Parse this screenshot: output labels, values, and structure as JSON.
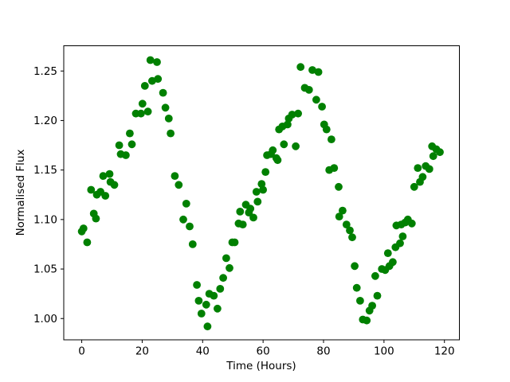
{
  "figure": {
    "background": "#ffffff",
    "axis_color": "#000000",
    "tick_label_color": "#000000"
  },
  "chart_data": {
    "type": "scatter",
    "title": "",
    "xlabel": "Time (Hours)",
    "ylabel": "Normalised Flux",
    "xlim": [
      -5.95,
      124.95
    ],
    "ylim": [
      0.9785,
      1.2755
    ],
    "x_ticks": [
      0,
      20,
      40,
      60,
      80,
      100,
      120
    ],
    "x_tick_labels": [
      "0",
      "20",
      "40",
      "60",
      "80",
      "100",
      "120"
    ],
    "y_ticks": [
      1.0,
      1.05,
      1.1,
      1.15,
      1.2,
      1.25
    ],
    "y_tick_labels": [
      "1.00",
      "1.05",
      "1.10",
      "1.15",
      "1.20",
      "1.25"
    ],
    "grid": false,
    "legend_position": "none",
    "series": [
      {
        "name": "normalised-flux-points",
        "color": "#008000",
        "marker": "circle",
        "marker_radius": 4.9,
        "points": [
          [
            0.0,
            1.088
          ],
          [
            0.6,
            1.091
          ],
          [
            1.8,
            1.077
          ],
          [
            3.1,
            1.13
          ],
          [
            4.0,
            1.106
          ],
          [
            4.7,
            1.101
          ],
          [
            5.0,
            1.125
          ],
          [
            6.2,
            1.128
          ],
          [
            7.1,
            1.144
          ],
          [
            7.8,
            1.124
          ],
          [
            9.2,
            1.146
          ],
          [
            9.5,
            1.138
          ],
          [
            10.8,
            1.135
          ],
          [
            12.4,
            1.175
          ],
          [
            12.9,
            1.166
          ],
          [
            14.6,
            1.165
          ],
          [
            15.9,
            1.187
          ],
          [
            16.6,
            1.176
          ],
          [
            17.9,
            1.207
          ],
          [
            19.6,
            1.207
          ],
          [
            20.1,
            1.217
          ],
          [
            20.9,
            1.235
          ],
          [
            21.9,
            1.209
          ],
          [
            22.7,
            1.261
          ],
          [
            23.3,
            1.24
          ],
          [
            24.9,
            1.259
          ],
          [
            25.2,
            1.242
          ],
          [
            26.9,
            1.228
          ],
          [
            27.7,
            1.213
          ],
          [
            28.8,
            1.202
          ],
          [
            29.4,
            1.187
          ],
          [
            30.8,
            1.144
          ],
          [
            32.1,
            1.135
          ],
          [
            33.6,
            1.1
          ],
          [
            34.6,
            1.116
          ],
          [
            35.7,
            1.093
          ],
          [
            36.7,
            1.075
          ],
          [
            38.1,
            1.034
          ],
          [
            38.7,
            1.018
          ],
          [
            39.6,
            1.005
          ],
          [
            41.2,
            1.014
          ],
          [
            41.6,
            0.992
          ],
          [
            42.2,
            1.025
          ],
          [
            43.7,
            1.023
          ],
          [
            44.9,
            1.01
          ],
          [
            45.8,
            1.03
          ],
          [
            46.8,
            1.041
          ],
          [
            47.8,
            1.061
          ],
          [
            48.9,
            1.051
          ],
          [
            49.8,
            1.077
          ],
          [
            50.6,
            1.077
          ],
          [
            51.9,
            1.096
          ],
          [
            52.4,
            1.108
          ],
          [
            53.3,
            1.095
          ],
          [
            54.3,
            1.115
          ],
          [
            55.3,
            1.107
          ],
          [
            55.8,
            1.111
          ],
          [
            56.8,
            1.102
          ],
          [
            57.8,
            1.128
          ],
          [
            58.2,
            1.118
          ],
          [
            59.5,
            1.136
          ],
          [
            60.0,
            1.13
          ],
          [
            60.8,
            1.148
          ],
          [
            61.3,
            1.165
          ],
          [
            62.6,
            1.166
          ],
          [
            63.2,
            1.17
          ],
          [
            64.4,
            1.162
          ],
          [
            64.8,
            1.16
          ],
          [
            65.3,
            1.191
          ],
          [
            66.4,
            1.194
          ],
          [
            66.9,
            1.176
          ],
          [
            68.1,
            1.196
          ],
          [
            68.5,
            1.202
          ],
          [
            69.6,
            1.206
          ],
          [
            70.8,
            1.174
          ],
          [
            71.6,
            1.207
          ],
          [
            72.4,
            1.254
          ],
          [
            73.8,
            1.233
          ],
          [
            75.2,
            1.231
          ],
          [
            76.3,
            1.251
          ],
          [
            77.6,
            1.221
          ],
          [
            78.3,
            1.249
          ],
          [
            79.5,
            1.214
          ],
          [
            80.2,
            1.196
          ],
          [
            81.0,
            1.191
          ],
          [
            82.6,
            1.181
          ],
          [
            81.9,
            1.15
          ],
          [
            83.5,
            1.152
          ],
          [
            85.0,
            1.133
          ],
          [
            85.2,
            1.103
          ],
          [
            86.3,
            1.109
          ],
          [
            87.6,
            1.095
          ],
          [
            88.7,
            1.089
          ],
          [
            89.5,
            1.082
          ],
          [
            90.3,
            1.053
          ],
          [
            91.0,
            1.031
          ],
          [
            92.1,
            1.018
          ],
          [
            93.0,
            0.999
          ],
          [
            94.3,
            0.998
          ],
          [
            95.2,
            1.008
          ],
          [
            96.1,
            1.013
          ],
          [
            97.1,
            1.043
          ],
          [
            97.8,
            1.023
          ],
          [
            99.3,
            1.05
          ],
          [
            100.4,
            1.049
          ],
          [
            101.3,
            1.066
          ],
          [
            101.8,
            1.053
          ],
          [
            102.9,
            1.057
          ],
          [
            103.8,
            1.072
          ],
          [
            104.1,
            1.094
          ],
          [
            105.3,
            1.076
          ],
          [
            105.7,
            1.095
          ],
          [
            106.2,
            1.083
          ],
          [
            107.0,
            1.097
          ],
          [
            107.9,
            1.1
          ],
          [
            109.2,
            1.096
          ],
          [
            110.0,
            1.133
          ],
          [
            111.2,
            1.152
          ],
          [
            111.9,
            1.138
          ],
          [
            112.8,
            1.143
          ],
          [
            113.8,
            1.154
          ],
          [
            115.0,
            1.151
          ],
          [
            115.9,
            1.174
          ],
          [
            116.3,
            1.164
          ],
          [
            117.3,
            1.171
          ],
          [
            118.5,
            1.168
          ]
        ]
      }
    ]
  }
}
